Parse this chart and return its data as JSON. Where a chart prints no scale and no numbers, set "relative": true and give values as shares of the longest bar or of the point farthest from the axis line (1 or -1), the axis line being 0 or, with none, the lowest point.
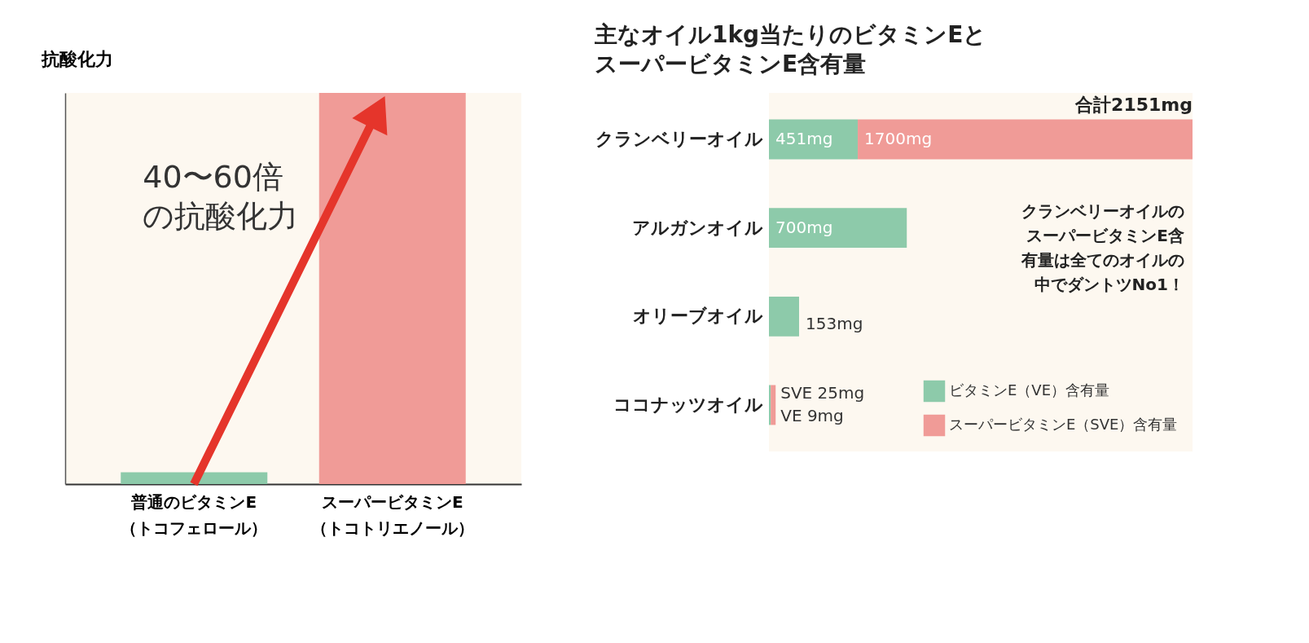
{
  "chart_data": [
    {
      "type": "bar",
      "relative": true,
      "ylabel": "抗酸化力",
      "categories": [
        "普通のビタミンE\n（トコフェロール）",
        "スーパービタミンE\n（トコトリエノール）"
      ],
      "colors": [
        "#8dcaaa",
        "#f09b97"
      ],
      "values": [
        0.03,
        1
      ],
      "annotations": [
        "40〜60倍の抗酸化力"
      ],
      "tick_labels": "x"
    },
    {
      "type": "bar",
      "orientation": "horizontal",
      "stacked": true,
      "title": "主なオイル1kg当たりのビタミンEとスーパービタミンE含有量",
      "categories": [
        "クランベリーオイル",
        "アルガンオイル",
        "オリーブオイル",
        "ココナッツオイル"
      ],
      "series": [
        {
          "name": "ビタミンE（VE）含有量",
          "color": "#8dcaaa",
          "values": [
            451,
            700,
            153,
            9
          ],
          "value_labels": [
            "451mg",
            "700mg",
            "153mg",
            "VE 9mg"
          ]
        },
        {
          "name": "スーパービタミンE（SVE）含有量",
          "color": "#f09b97",
          "values": [
            1700,
            null,
            null,
            25
          ],
          "value_labels": [
            "1700mg",
            null,
            null,
            "SVE 25mg"
          ]
        }
      ],
      "totals": [
        "合計2151mg",
        null,
        null,
        null
      ],
      "annotations": [
        "クランベリーオイルのスーパービタミンE含有量は全てのオイルの中でダントツNo1！"
      ],
      "legend": "bottom right",
      "tick_labels": "y"
    }
  ]
}
